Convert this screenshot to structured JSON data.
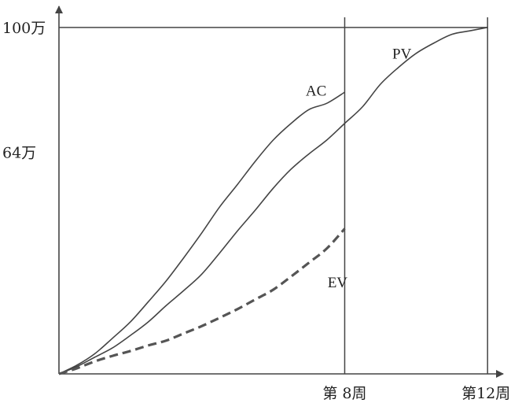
{
  "chart_data": {
    "type": "line",
    "title": "",
    "xlabel": "",
    "ylabel": "",
    "xlim": [
      0,
      12.7
    ],
    "ylim": [
      0,
      107
    ],
    "x_ticks": [
      {
        "value": 8,
        "label": "第 8周"
      },
      {
        "value": 12,
        "label": "第12周"
      }
    ],
    "y_ticks": [
      {
        "value": 100,
        "label": "100万"
      },
      {
        "value": 64,
        "label": "64万"
      }
    ],
    "series": [
      {
        "name": "AC",
        "style": "solid",
        "color": "#444444",
        "x": [
          0,
          0.5,
          1,
          1.5,
          2,
          2.5,
          3,
          3.5,
          4,
          4.5,
          5,
          5.5,
          6,
          6.5,
          7,
          7.5,
          8
        ],
        "y": [
          0,
          2.5,
          5.8,
          10.3,
          15,
          20.8,
          26.8,
          33.6,
          40.7,
          48.2,
          54.7,
          61.4,
          67.5,
          72.3,
          76.3,
          78.1,
          81.3
        ]
      },
      {
        "name": "PV",
        "style": "solid",
        "color": "#444444",
        "x": [
          0,
          0.5,
          1,
          1.5,
          2,
          2.5,
          3,
          3.5,
          4,
          4.5,
          5,
          5.5,
          6,
          6.5,
          7,
          7.5,
          8,
          8.5,
          9,
          9.5,
          10,
          10.5,
          11,
          11.5,
          12
        ],
        "y": [
          0,
          2.1,
          4.8,
          7.5,
          11.1,
          15,
          19.7,
          24.1,
          28.8,
          34.9,
          41.3,
          47.3,
          53.6,
          59.1,
          63.5,
          67.5,
          72.3,
          77.1,
          83.6,
          88.4,
          92.5,
          95.5,
          98,
          99,
          100
        ]
      },
      {
        "name": "EV",
        "style": "dashed",
        "color": "#555555",
        "x": [
          0,
          0.5,
          1,
          1.5,
          2,
          2.5,
          3,
          3.5,
          4,
          4.5,
          5,
          5.5,
          6,
          6.5,
          7,
          7.5,
          8
        ],
        "y": [
          0,
          1.6,
          3.6,
          5.2,
          6.6,
          8.2,
          9.6,
          11.7,
          13.8,
          16.2,
          18.7,
          21.5,
          24.3,
          28.1,
          32.1,
          36.2,
          41.9
        ]
      }
    ]
  }
}
